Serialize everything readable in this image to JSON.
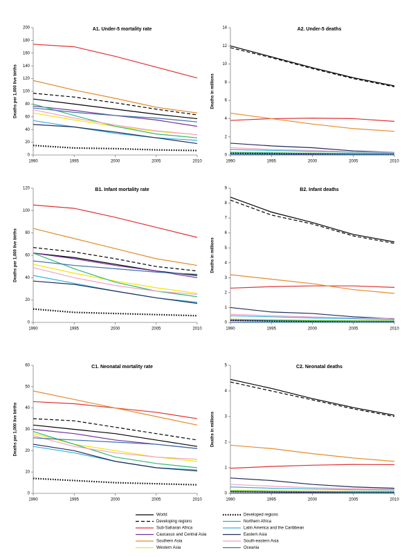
{
  "legend": [
    {
      "name": "World",
      "color": "#000000",
      "dash": "",
      "width": 1.2
    },
    {
      "name": "Developing regions",
      "color": "#000000",
      "dash": "5 3",
      "width": 1.2
    },
    {
      "name": "Sub-Saharan Africa",
      "color": "#e03030",
      "dash": "",
      "width": 1.2
    },
    {
      "name": "Caucasus and Central Asia",
      "color": "#7030a0",
      "dash": "",
      "width": 1.2
    },
    {
      "name": "Southern Asia",
      "color": "#e48a2a",
      "dash": "",
      "width": 1.2
    },
    {
      "name": "Western Asia",
      "color": "#f2e600",
      "dash": "",
      "width": 1.2
    },
    {
      "name": "Developed regions",
      "color": "#000000",
      "dash": "1.5 2",
      "width": 2.2
    },
    {
      "name": "Northern Africa",
      "color": "#2eb872",
      "dash": "",
      "width": 1.2
    },
    {
      "name": "Latin America and the Caribbean",
      "color": "#33b0e0",
      "dash": "",
      "width": 1.2
    },
    {
      "name": "Eastern Asia",
      "color": "#1f2a5a",
      "dash": "",
      "width": 1.2
    },
    {
      "name": "South-eastern Asia",
      "color": "#f0a0c8",
      "dash": "",
      "width": 1.2
    },
    {
      "name": "Oceania",
      "color": "#3a6fa8",
      "dash": "",
      "width": 1.2
    }
  ],
  "chart_data": [
    {
      "type": "line",
      "title": "A1. Under-5 mortality rate",
      "y_label": "Deaths per 1,000 live births",
      "x": [
        1990,
        1995,
        2000,
        2005,
        2010
      ],
      "xlim": [
        1990,
        2010
      ],
      "xticks": [
        1990,
        1995,
        2000,
        2005,
        2010
      ],
      "ylim": [
        0,
        200
      ],
      "yticks": [
        0,
        20,
        40,
        60,
        80,
        100,
        120,
        140,
        160,
        180,
        200
      ],
      "series": [
        {
          "values": [
            88,
            80,
            72,
            64,
            57
          ]
        },
        {
          "values": [
            97,
            91,
            82,
            72,
            63
          ]
        },
        {
          "values": [
            174,
            170,
            155,
            138,
            121
          ]
        },
        {
          "values": [
            77,
            70,
            62,
            55,
            45
          ]
        },
        {
          "values": [
            117,
            102,
            89,
            75,
            66
          ]
        },
        {
          "values": [
            66,
            55,
            45,
            37,
            32
          ]
        },
        {
          "values": [
            15,
            11,
            10,
            8,
            7
          ]
        },
        {
          "values": [
            80,
            62,
            45,
            33,
            27
          ]
        },
        {
          "values": [
            54,
            44,
            34,
            27,
            23
          ]
        },
        {
          "values": [
            48,
            44,
            36,
            27,
            18
          ]
        },
        {
          "values": [
            71,
            58,
            47,
            38,
            32
          ]
        },
        {
          "values": [
            74,
            67,
            62,
            58,
            52
          ]
        }
      ]
    },
    {
      "type": "line",
      "title": "A2. Under-5 deaths",
      "y_label": "Deaths in millions",
      "x": [
        1990,
        1995,
        2000,
        2005,
        2010
      ],
      "xlim": [
        1990,
        2010
      ],
      "xticks": [
        1990,
        1995,
        2000,
        2005,
        2010
      ],
      "ylim": [
        0,
        14
      ],
      "yticks": [
        0,
        2,
        4,
        6,
        8,
        10,
        12,
        14
      ],
      "series": [
        {
          "values": [
            12.0,
            10.8,
            9.6,
            8.5,
            7.6
          ]
        },
        {
          "values": [
            11.8,
            10.7,
            9.5,
            8.4,
            7.5
          ]
        },
        {
          "values": [
            3.8,
            4.0,
            4.05,
            4.0,
            3.7
          ]
        },
        {
          "values": [
            0.15,
            0.13,
            0.1,
            0.1,
            0.1
          ]
        },
        {
          "values": [
            4.6,
            4.0,
            3.4,
            2.9,
            2.6
          ]
        },
        {
          "values": [
            0.3,
            0.25,
            0.2,
            0.17,
            0.15
          ]
        },
        {
          "values": [
            0.2,
            0.15,
            0.12,
            0.1,
            0.1
          ]
        },
        {
          "values": [
            0.3,
            0.25,
            0.2,
            0.15,
            0.15
          ]
        },
        {
          "values": [
            0.6,
            0.5,
            0.4,
            0.3,
            0.25
          ]
        },
        {
          "values": [
            1.3,
            1.0,
            0.8,
            0.45,
            0.3
          ]
        },
        {
          "values": [
            0.8,
            0.6,
            0.5,
            0.35,
            0.3
          ]
        },
        {
          "values": [
            0.02,
            0.02,
            0.02,
            0.02,
            0.02
          ]
        }
      ]
    },
    {
      "type": "line",
      "title": "B1. Infant mortality rate",
      "y_label": "Deaths per 1,000 live births",
      "x": [
        1990,
        1995,
        2000,
        2005,
        2010
      ],
      "xlim": [
        1990,
        2010
      ],
      "xticks": [
        1990,
        1995,
        2000,
        2005,
        2010
      ],
      "ylim": [
        0,
        120
      ],
      "yticks": [
        0,
        20,
        40,
        60,
        80,
        100,
        120
      ],
      "series": [
        {
          "values": [
            62,
            58,
            52,
            46,
            42
          ]
        },
        {
          "values": [
            67,
            63,
            57,
            50,
            46
          ]
        },
        {
          "values": [
            105,
            102,
            94,
            85,
            76
          ]
        },
        {
          "values": [
            62,
            57,
            51,
            46,
            40
          ]
        },
        {
          "values": [
            84,
            75,
            66,
            57,
            51
          ]
        },
        {
          "values": [
            52,
            44,
            37,
            31,
            26
          ]
        },
        {
          "values": [
            12,
            9,
            8,
            7,
            6
          ]
        },
        {
          "values": [
            62,
            48,
            36,
            28,
            23
          ]
        },
        {
          "values": [
            42,
            35,
            28,
            22,
            18
          ]
        },
        {
          "values": [
            37,
            34,
            28,
            22,
            17
          ]
        },
        {
          "values": [
            49,
            40,
            33,
            28,
            25
          ]
        },
        {
          "values": [
            55,
            51,
            48,
            45,
            43
          ]
        }
      ]
    },
    {
      "type": "line",
      "title": "B2. Infant deaths",
      "y_label": "Deaths in millions",
      "x": [
        1990,
        1995,
        2000,
        2005,
        2010
      ],
      "xlim": [
        1990,
        2010
      ],
      "xticks": [
        1990,
        1995,
        2000,
        2005,
        2010
      ],
      "ylim": [
        0,
        9
      ],
      "yticks": [
        0,
        1,
        2,
        3,
        4,
        5,
        6,
        7,
        8,
        9
      ],
      "series": [
        {
          "values": [
            8.4,
            7.4,
            6.7,
            5.9,
            5.4
          ]
        },
        {
          "values": [
            8.2,
            7.2,
            6.6,
            5.8,
            5.3
          ]
        },
        {
          "values": [
            2.3,
            2.4,
            2.45,
            2.45,
            2.35
          ]
        },
        {
          "values": [
            0.12,
            0.1,
            0.08,
            0.08,
            0.07
          ]
        },
        {
          "values": [
            3.2,
            2.9,
            2.6,
            2.2,
            1.95
          ]
        },
        {
          "values": [
            0.22,
            0.18,
            0.15,
            0.13,
            0.12
          ]
        },
        {
          "values": [
            0.15,
            0.1,
            0.08,
            0.07,
            0.07
          ]
        },
        {
          "values": [
            0.2,
            0.15,
            0.12,
            0.1,
            0.1
          ]
        },
        {
          "values": [
            0.45,
            0.38,
            0.3,
            0.25,
            0.2
          ]
        },
        {
          "values": [
            1.0,
            0.7,
            0.6,
            0.38,
            0.25
          ]
        },
        {
          "values": [
            0.55,
            0.45,
            0.37,
            0.3,
            0.27
          ]
        },
        {
          "values": [
            0.01,
            0.01,
            0.01,
            0.01,
            0.01
          ]
        }
      ]
    },
    {
      "type": "line",
      "title": "C1. Neonatal mortality rate",
      "y_label": "Deaths per 1,000 live births",
      "x": [
        1990,
        1995,
        2000,
        2005,
        2010
      ],
      "xlim": [
        1990,
        2010
      ],
      "xticks": [
        1990,
        1995,
        2000,
        2005,
        2010
      ],
      "ylim": [
        0,
        60
      ],
      "yticks": [
        0,
        10,
        20,
        30,
        40,
        50,
        60
      ],
      "series": [
        {
          "values": [
            32,
            30,
            28,
            25,
            22
          ]
        },
        {
          "values": [
            35,
            34,
            31,
            28,
            25
          ]
        },
        {
          "values": [
            43,
            42,
            40,
            38,
            35
          ]
        },
        {
          "values": [
            30,
            28,
            25,
            23,
            21
          ]
        },
        {
          "values": [
            48,
            44,
            40,
            36,
            32
          ]
        },
        {
          "values": [
            28,
            23,
            20,
            17,
            15
          ]
        },
        {
          "values": [
            7,
            6,
            5,
            4.5,
            4
          ]
        },
        {
          "values": [
            29,
            23,
            17,
            14,
            12
          ]
        },
        {
          "values": [
            22,
            19,
            15,
            12,
            11
          ]
        },
        {
          "values": [
            23,
            20,
            15,
            12,
            10.5
          ]
        },
        {
          "values": [
            27,
            22,
            19,
            17,
            16
          ]
        },
        {
          "values": [
            26,
            25,
            24,
            23,
            21
          ]
        }
      ]
    },
    {
      "type": "line",
      "title": "C2. Neonatal deaths",
      "y_label": "Deaths in millions",
      "x": [
        1990,
        1995,
        2000,
        2005,
        2010
      ],
      "xlim": [
        1990,
        2010
      ],
      "xticks": [
        1990,
        1995,
        2000,
        2005,
        2010
      ],
      "ylim": [
        0,
        5
      ],
      "yticks": [
        0,
        1,
        2,
        3,
        4,
        5
      ],
      "series": [
        {
          "values": [
            4.45,
            4.1,
            3.7,
            3.35,
            3.05
          ]
        },
        {
          "values": [
            4.35,
            4.0,
            3.65,
            3.3,
            3.0
          ]
        },
        {
          "values": [
            0.98,
            1.05,
            1.1,
            1.13,
            1.12
          ]
        },
        {
          "values": [
            0.06,
            0.05,
            0.04,
            0.04,
            0.04
          ]
        },
        {
          "values": [
            1.88,
            1.75,
            1.55,
            1.38,
            1.25
          ]
        },
        {
          "values": [
            0.12,
            0.1,
            0.09,
            0.08,
            0.07
          ]
        },
        {
          "values": [
            0.08,
            0.06,
            0.05,
            0.05,
            0.05
          ]
        },
        {
          "values": [
            0.1,
            0.08,
            0.07,
            0.06,
            0.06
          ]
        },
        {
          "values": [
            0.25,
            0.2,
            0.17,
            0.14,
            0.13
          ]
        },
        {
          "values": [
            0.6,
            0.5,
            0.35,
            0.25,
            0.2
          ]
        },
        {
          "values": [
            0.35,
            0.28,
            0.22,
            0.18,
            0.16
          ]
        },
        {
          "values": [
            0.01,
            0.01,
            0.01,
            0.01,
            0.01
          ]
        }
      ]
    }
  ]
}
